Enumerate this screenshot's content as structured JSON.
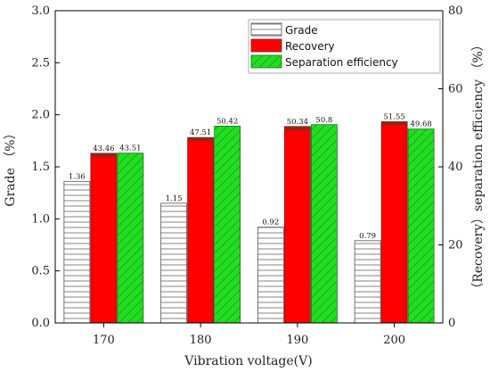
{
  "chart_data": {
    "type": "bar",
    "categories": [
      "170",
      "180",
      "190",
      "200"
    ],
    "xlabel": "Vibration voltage(V)",
    "ylabel_left": "Grade （%）",
    "ylabel_right": "（Recovery）separation efficiency （%）",
    "ylim_left": [
      0,
      3.0
    ],
    "ylim_right": [
      0,
      80
    ],
    "left_ticks": [
      "0.0",
      "0.5",
      "1.0",
      "1.5",
      "2.0",
      "2.5",
      "3.0"
    ],
    "right_ticks": [
      "0",
      "20",
      "40",
      "60",
      "80"
    ],
    "grid": false,
    "legend_position": "top-right",
    "series": [
      {
        "name": "Grade",
        "axis": "left",
        "values": [
          1.36,
          1.15,
          0.92,
          0.79
        ],
        "labels": [
          "1.36",
          "1.15",
          "0.92",
          "0.79"
        ],
        "color": "#ffffff",
        "hatch": "horizontal"
      },
      {
        "name": "Recovery",
        "axis": "right",
        "values": [
          43.46,
          47.51,
          50.34,
          51.55
        ],
        "labels": [
          "43.46",
          "47.51",
          "50.34",
          "51.55"
        ],
        "color": "#ff0000",
        "hatch": "none"
      },
      {
        "name": "Separation efficiency",
        "axis": "right",
        "values": [
          43.51,
          50.42,
          50.8,
          49.68
        ],
        "labels": [
          "43.51",
          "50.42",
          "50.8",
          "49.68"
        ],
        "color": "#22dd22",
        "hatch": "diagonal"
      }
    ]
  }
}
